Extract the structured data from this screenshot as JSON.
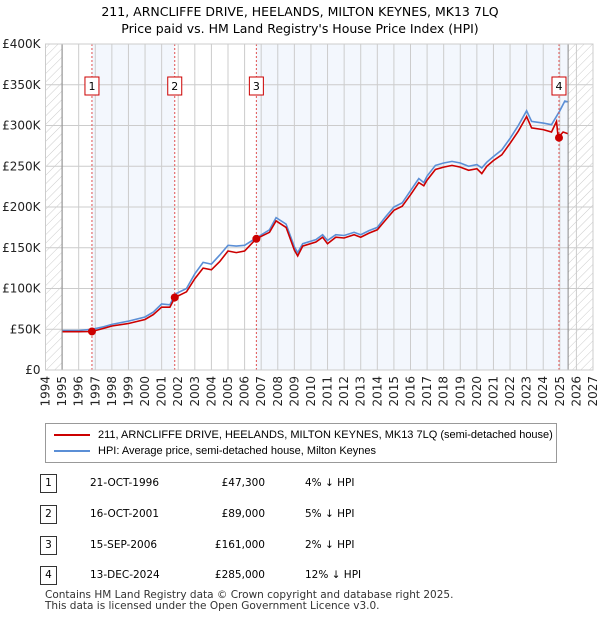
{
  "chart_data": {
    "type": "line",
    "title": "211, ARNCLIFFE DRIVE, HEELANDS, MILTON KEYNES, MK13 7LQ",
    "subtitle": "Price paid vs. HM Land Registry's House Price Index (HPI)",
    "xlim": [
      1994,
      2027
    ],
    "ylim": [
      0,
      400000
    ],
    "x_ticks": [
      "1994",
      "1995",
      "1996",
      "1997",
      "1998",
      "1999",
      "2000",
      "2001",
      "2002",
      "2003",
      "2004",
      "2005",
      "2006",
      "2007",
      "2008",
      "2009",
      "2010",
      "2011",
      "2012",
      "2013",
      "2014",
      "2015",
      "2016",
      "2017",
      "2018",
      "2019",
      "2020",
      "2021",
      "2022",
      "2023",
      "2024",
      "2025",
      "2026",
      "2027"
    ],
    "y_ticks": [
      {
        "v": 0,
        "label": "£0"
      },
      {
        "v": 50000,
        "label": "£50K"
      },
      {
        "v": 100000,
        "label": "£100K"
      },
      {
        "v": 150000,
        "label": "£150K"
      },
      {
        "v": 200000,
        "label": "£200K"
      },
      {
        "v": 250000,
        "label": "£250K"
      },
      {
        "v": 300000,
        "label": "£300K"
      },
      {
        "v": 350000,
        "label": "£350K"
      },
      {
        "v": 400000,
        "label": "£400K"
      }
    ],
    "data_range": [
      1995,
      2025.5
    ],
    "series": [
      {
        "name": "211, ARNCLIFFE DRIVE, HEELANDS, MILTON KEYNES, MK13 7LQ (semi-detached house)",
        "color": "#cc0000",
        "points": [
          [
            1995,
            47000
          ],
          [
            1996,
            47000
          ],
          [
            1996.8,
            47300
          ],
          [
            1997.5,
            51000
          ],
          [
            1998,
            54000
          ],
          [
            1999,
            57000
          ],
          [
            2000,
            62000
          ],
          [
            2000.5,
            68000
          ],
          [
            2001,
            77000
          ],
          [
            2001.5,
            77000
          ],
          [
            2001.8,
            89000
          ],
          [
            2002.5,
            96000
          ],
          [
            2003,
            112000
          ],
          [
            2003.5,
            125000
          ],
          [
            2004,
            123000
          ],
          [
            2004.5,
            133000
          ],
          [
            2005,
            146000
          ],
          [
            2005.5,
            144000
          ],
          [
            2006,
            146000
          ],
          [
            2006.7,
            161000
          ],
          [
            2007.5,
            169000
          ],
          [
            2007.9,
            183000
          ],
          [
            2008.5,
            175000
          ],
          [
            2009,
            147000
          ],
          [
            2009.2,
            140000
          ],
          [
            2009.5,
            152000
          ],
          [
            2010.3,
            157000
          ],
          [
            2010.7,
            163000
          ],
          [
            2011,
            155000
          ],
          [
            2011.5,
            163000
          ],
          [
            2012,
            162000
          ],
          [
            2012.6,
            166000
          ],
          [
            2013,
            163000
          ],
          [
            2013.5,
            168000
          ],
          [
            2014,
            172000
          ],
          [
            2014.5,
            184000
          ],
          [
            2015,
            196000
          ],
          [
            2015.5,
            201000
          ],
          [
            2016,
            215000
          ],
          [
            2016.5,
            230000
          ],
          [
            2016.8,
            226000
          ],
          [
            2017,
            233000
          ],
          [
            2017.5,
            246000
          ],
          [
            2018,
            249000
          ],
          [
            2018.5,
            251000
          ],
          [
            2019,
            249000
          ],
          [
            2019.5,
            245000
          ],
          [
            2020,
            247000
          ],
          [
            2020.3,
            241000
          ],
          [
            2020.6,
            250000
          ],
          [
            2021,
            257000
          ],
          [
            2021.5,
            264000
          ],
          [
            2022,
            278000
          ],
          [
            2022.5,
            293000
          ],
          [
            2023,
            311000
          ],
          [
            2023.3,
            297000
          ],
          [
            2024,
            295000
          ],
          [
            2024.5,
            292000
          ],
          [
            2024.8,
            305000
          ],
          [
            2024.9,
            285000
          ],
          [
            2025.2,
            292000
          ],
          [
            2025.5,
            290000
          ]
        ]
      },
      {
        "name": "HPI: Average price, semi-detached house, Milton Keynes",
        "color": "#5b8fd6",
        "points": [
          [
            1995,
            48500
          ],
          [
            1996,
            48500
          ],
          [
            1996.8,
            50000
          ],
          [
            1997.5,
            53000
          ],
          [
            1998,
            56000
          ],
          [
            1999,
            60000
          ],
          [
            2000,
            65000
          ],
          [
            2000.5,
            71000
          ],
          [
            2001,
            81000
          ],
          [
            2001.5,
            80000
          ],
          [
            2001.8,
            93000
          ],
          [
            2002.5,
            100000
          ],
          [
            2003,
            118000
          ],
          [
            2003.5,
            132000
          ],
          [
            2004,
            130000
          ],
          [
            2004.5,
            141000
          ],
          [
            2005,
            153000
          ],
          [
            2005.5,
            152000
          ],
          [
            2006,
            153000
          ],
          [
            2006.7,
            162000
          ],
          [
            2007.5,
            172000
          ],
          [
            2007.9,
            187000
          ],
          [
            2008.5,
            179000
          ],
          [
            2009,
            151000
          ],
          [
            2009.2,
            144000
          ],
          [
            2009.5,
            155000
          ],
          [
            2010.3,
            160000
          ],
          [
            2010.7,
            166000
          ],
          [
            2011,
            159000
          ],
          [
            2011.5,
            166000
          ],
          [
            2012,
            165000
          ],
          [
            2012.6,
            169000
          ],
          [
            2013,
            166000
          ],
          [
            2013.5,
            171000
          ],
          [
            2014,
            175000
          ],
          [
            2014.5,
            188000
          ],
          [
            2015,
            200000
          ],
          [
            2015.5,
            205000
          ],
          [
            2016,
            220000
          ],
          [
            2016.5,
            235000
          ],
          [
            2016.8,
            230000
          ],
          [
            2017,
            238000
          ],
          [
            2017.5,
            251000
          ],
          [
            2018,
            254000
          ],
          [
            2018.5,
            256000
          ],
          [
            2019,
            254000
          ],
          [
            2019.5,
            250000
          ],
          [
            2020,
            252000
          ],
          [
            2020.3,
            248000
          ],
          [
            2020.6,
            255000
          ],
          [
            2021,
            262000
          ],
          [
            2021.5,
            270000
          ],
          [
            2022,
            284000
          ],
          [
            2022.5,
            300000
          ],
          [
            2023,
            318000
          ],
          [
            2023.3,
            305000
          ],
          [
            2024,
            303000
          ],
          [
            2024.5,
            301000
          ],
          [
            2025,
            318000
          ],
          [
            2025.3,
            330000
          ],
          [
            2025.5,
            329000
          ]
        ]
      }
    ],
    "sales": [
      {
        "n": "1",
        "x": 1996.8,
        "y": 47300
      },
      {
        "n": "2",
        "x": 2001.79,
        "y": 89000
      },
      {
        "n": "3",
        "x": 2006.71,
        "y": 161000
      },
      {
        "n": "4",
        "x": 2024.95,
        "y": 285000
      }
    ]
  },
  "legend": {
    "red": "211, ARNCLIFFE DRIVE, HEELANDS, MILTON KEYNES, MK13 7LQ (semi-detached house)",
    "blue": "HPI: Average price, semi-detached house, Milton Keynes"
  },
  "table": [
    {
      "n": "1",
      "date": "21-OCT-1996",
      "price": "£47,300",
      "hpi": "4% ↓ HPI"
    },
    {
      "n": "2",
      "date": "16-OCT-2001",
      "price": "£89,000",
      "hpi": "5% ↓ HPI"
    },
    {
      "n": "3",
      "date": "15-SEP-2006",
      "price": "£161,000",
      "hpi": "2% ↓ HPI"
    },
    {
      "n": "4",
      "date": "13-DEC-2024",
      "price": "£285,000",
      "hpi": "12% ↓ HPI"
    }
  ],
  "footer": {
    "line1": "Contains HM Land Registry data © Crown copyright and database right 2025.",
    "line2": "This data is licensed under the Open Government Licence v3.0."
  }
}
